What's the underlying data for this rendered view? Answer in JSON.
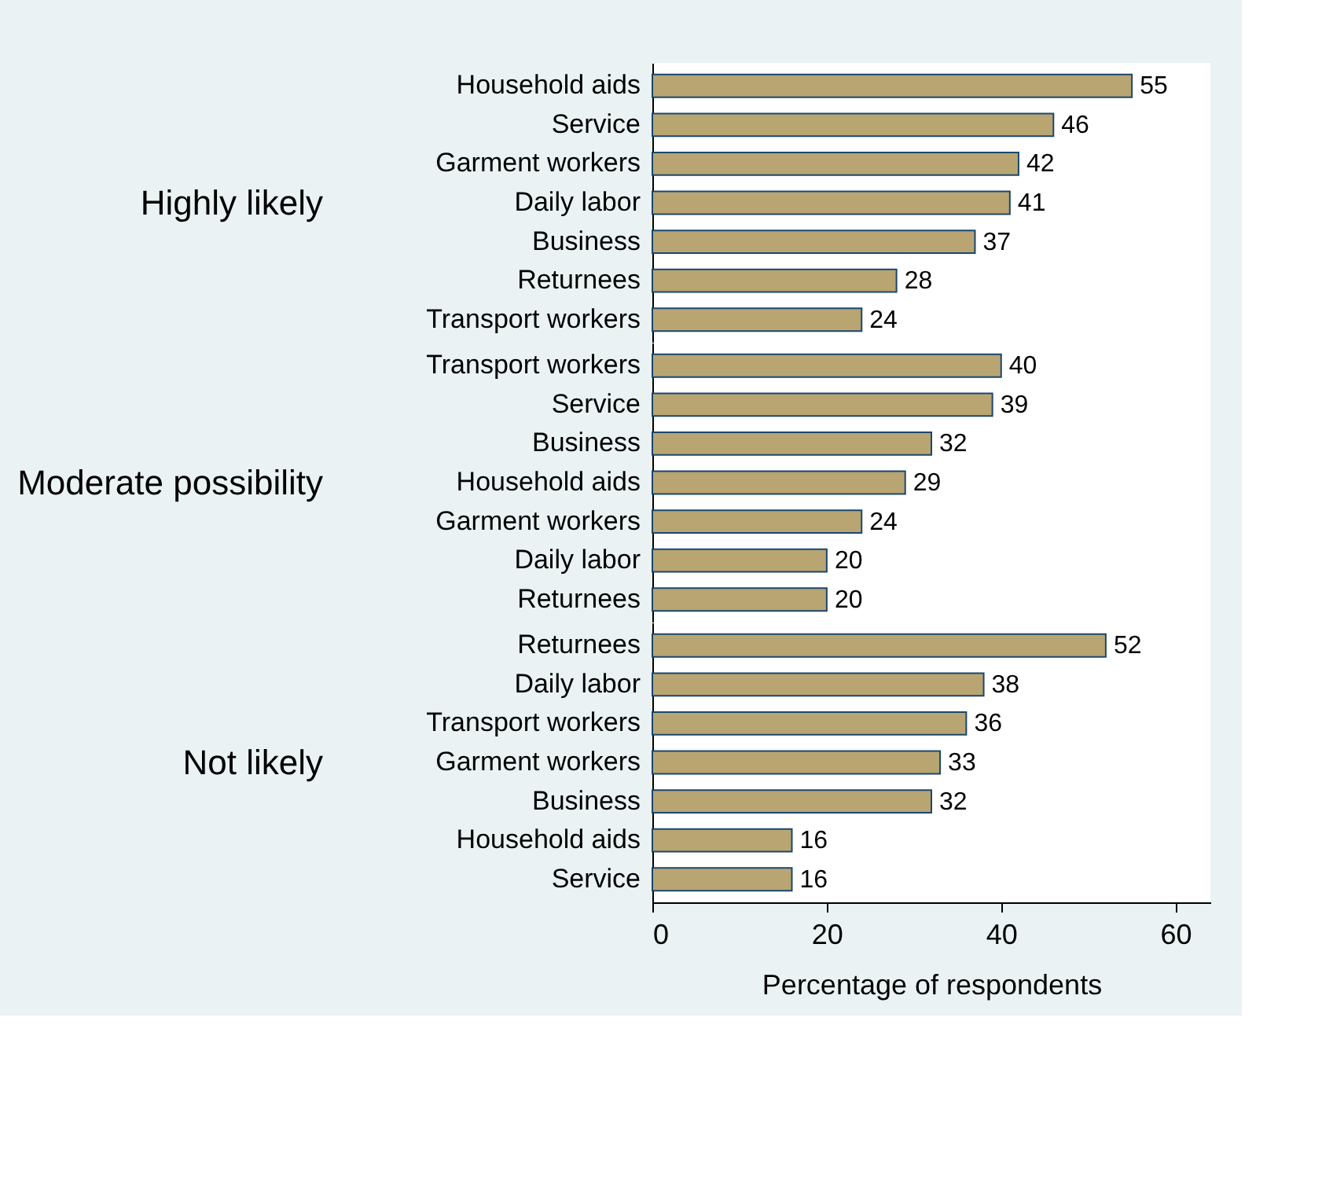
{
  "chart_data": [
    {
      "type": "bar",
      "orientation": "horizontal",
      "ylabel": "Highly likely",
      "categories": [
        "Household aids",
        "Service",
        "Garment workers",
        "Daily labor",
        "Business",
        "Returnees",
        "Transport workers"
      ],
      "values": [
        55,
        46,
        42,
        41,
        37,
        28,
        24
      ],
      "color": "#b8a572",
      "xlim": [
        0,
        64
      ],
      "data_labels": true,
      "tick_labels": "y",
      "grid": false
    },
    {
      "type": "bar",
      "orientation": "horizontal",
      "ylabel": "Moderate possibility",
      "categories": [
        "Transport workers",
        "Service",
        "Business",
        "Household aids",
        "Garment workers",
        "Daily labor",
        "Returnees"
      ],
      "values": [
        40,
        39,
        32,
        29,
        24,
        20,
        20
      ],
      "color": "#b8a572",
      "xlim": [
        0,
        64
      ],
      "data_labels": true,
      "tick_labels": "y",
      "grid": false
    },
    {
      "type": "bar",
      "orientation": "horizontal",
      "ylabel": "Not likely",
      "xlabel": "Percentage of respondents",
      "categories": [
        "Returnees",
        "Daily labor",
        "Transport workers",
        "Garment workers",
        "Business",
        "Household aids",
        "Service"
      ],
      "values": [
        52,
        38,
        36,
        33,
        32,
        16,
        16
      ],
      "color": "#b8a572",
      "xlim": [
        0,
        64
      ],
      "xticks": [
        0,
        20,
        40,
        60
      ],
      "data_labels": true,
      "grid": false
    }
  ]
}
